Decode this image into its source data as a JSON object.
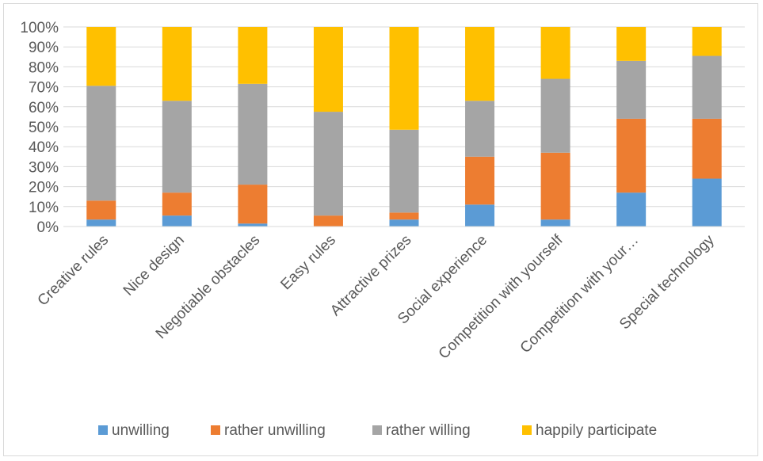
{
  "chart_data": {
    "type": "bar",
    "stacked": true,
    "normalized": true,
    "categories": [
      "Creative rules",
      "Nice design",
      "Negotiable obstacles",
      "Easy rules",
      "Attractive prizes",
      "Social experience",
      "Competition with yourself",
      "Competition with your…",
      "Special technology"
    ],
    "series": [
      {
        "name": "unwilling",
        "color": "#5b9bd5",
        "values": [
          3.5,
          5.5,
          1.5,
          0,
          3.5,
          11,
          3.5,
          17,
          24
        ]
      },
      {
        "name": "rather unwilling",
        "color": "#ed7d31",
        "values": [
          9.5,
          11.5,
          19.5,
          5.5,
          3.5,
          24,
          33.5,
          37,
          30
        ]
      },
      {
        "name": "rather willing",
        "color": "#a5a5a5",
        "values": [
          57.5,
          46,
          50.5,
          52,
          41.5,
          28,
          37,
          29,
          31.5
        ]
      },
      {
        "name": "happily participate",
        "color": "#ffc000",
        "values": [
          29.5,
          37,
          28.5,
          42.5,
          51.5,
          37,
          26,
          17,
          14.5
        ]
      }
    ],
    "y_ticks": [
      "0%",
      "10%",
      "20%",
      "30%",
      "40%",
      "50%",
      "60%",
      "70%",
      "80%",
      "90%",
      "100%"
    ],
    "ylim": [
      0,
      100
    ],
    "grid": true,
    "legend_position": "bottom"
  }
}
